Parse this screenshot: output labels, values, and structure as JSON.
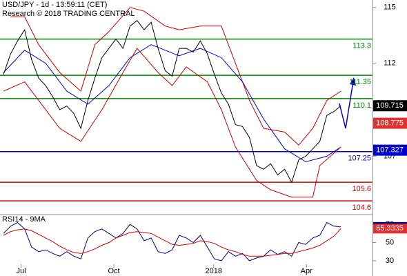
{
  "chart_data": [
    {
      "type": "line",
      "title": "USD/JPY - 1d - 13:59:11 (CET)",
      "subtitle": "Research © 2018 TRADING CENTRAL",
      "xlim": [
        -0.5,
        52.5
      ],
      "xticks": [
        {
          "value": 2.5,
          "label": "Jul"
        },
        {
          "value": 15.7,
          "label": "Oct"
        },
        {
          "value": 29.9,
          "label": "2018"
        },
        {
          "value": 43.1,
          "label": "Apr"
        }
      ],
      "ylim": [
        103.9,
        115.4
      ],
      "yticks": [
        107,
        112,
        115
      ],
      "series": [
        {
          "color": "#000000",
          "x": [
            0,
            1,
            2,
            3,
            4,
            5,
            6,
            7,
            8,
            9,
            10,
            11,
            12,
            13,
            14,
            15,
            16,
            17,
            18,
            19,
            20,
            21,
            22,
            23,
            24,
            25,
            26,
            27,
            28,
            29,
            30,
            31,
            32,
            33,
            34,
            35,
            36,
            37,
            38,
            39,
            40,
            41,
            42,
            43,
            44,
            45,
            46,
            47,
            48
          ],
          "values": [
            111.4,
            112.5,
            113.2,
            113.8,
            112.2,
            111.2,
            110.8,
            110.2,
            109.5,
            109.7,
            109.3,
            108.5,
            110.0,
            111.2,
            112.3,
            112.8,
            113.3,
            112.8,
            114.0,
            114.3,
            113.8,
            114.2,
            112.8,
            111.6,
            111.3,
            112.8,
            112.8,
            112.6,
            113.2,
            112.5,
            111.4,
            110.4,
            109.8,
            108.7,
            108.6,
            108.0,
            106.5,
            106.3,
            106.6,
            106.0,
            106.3,
            105.6,
            106.8,
            107.0,
            107.4,
            107.8,
            109.2,
            109.4,
            109.715
          ]
        },
        {
          "color": "#cc0000",
          "x": [
            1,
            3,
            5,
            8,
            11,
            13,
            15,
            18,
            20,
            23,
            25,
            28,
            31,
            33,
            35,
            37,
            40,
            42,
            44,
            46,
            48
          ],
          "values": [
            114.5,
            114.5,
            113.0,
            111.5,
            110.5,
            113.0,
            113.7,
            115.0,
            114.8,
            114.0,
            113.8,
            114.0,
            114.0,
            112.0,
            110.0,
            108.5,
            108.3,
            107.6,
            108.5,
            110.0,
            110.5
          ]
        },
        {
          "color": "#0000cc",
          "x": [
            0,
            3,
            6,
            9,
            12,
            15,
            18,
            21,
            25,
            28,
            31,
            34,
            37,
            40,
            43,
            46,
            48
          ],
          "values": [
            111.5,
            112.7,
            112.0,
            110.5,
            109.8,
            110.8,
            112.3,
            113.0,
            112.4,
            112.8,
            112.3,
            111.0,
            109.0,
            107.4,
            106.7,
            107.0,
            107.5
          ]
        },
        {
          "color": "#cc0000",
          "x": [
            0,
            3,
            5,
            8,
            11,
            14,
            17,
            19,
            22,
            24,
            26,
            29,
            31,
            33,
            36,
            38,
            41,
            44,
            45,
            48
          ],
          "values": [
            110.5,
            111.0,
            110.0,
            108.5,
            107.8,
            109.5,
            111.5,
            112.8,
            111.5,
            110.8,
            111.8,
            111.0,
            109.5,
            107.5,
            105.7,
            105.2,
            104.8,
            104.8,
            106.5,
            107.5
          ]
        }
      ],
      "levels": [
        {
          "value": 113.3,
          "color": "#008000"
        },
        {
          "value": 111.35,
          "color": "#008000"
        },
        {
          "value": 110.1,
          "color": "#008000"
        },
        {
          "value": 107.25,
          "color": "#0000cc"
        },
        {
          "value": 105.6,
          "color": "#cc0000"
        },
        {
          "value": 104.6,
          "color": "#cc0000"
        }
      ],
      "price_labels": [
        {
          "value": 109.715,
          "color": "#000000"
        },
        {
          "value": 108.775,
          "color": "#e03030"
        },
        {
          "value": 107.327,
          "color": "#0000cc"
        }
      ]
    },
    {
      "type": "line",
      "title": "RSI14 - 9MA",
      "xlim": [
        -0.5,
        52.5
      ],
      "ylim": [
        17,
        80
      ],
      "yticks": [
        30,
        50,
        70
      ],
      "series": [
        {
          "color": "#000080",
          "x": [
            0,
            1,
            2,
            3,
            4,
            5,
            6,
            7,
            8,
            9,
            10,
            11,
            12,
            13,
            14,
            15,
            16,
            17,
            18,
            19,
            20,
            21,
            22,
            23,
            24,
            25,
            26,
            27,
            28,
            29,
            30,
            31,
            32,
            33,
            34,
            35,
            36,
            37,
            38,
            39,
            40,
            41,
            42,
            43,
            44,
            45,
            46,
            47,
            48
          ],
          "values": [
            60,
            68,
            72,
            65,
            45,
            40,
            42,
            38,
            35,
            40,
            35,
            32,
            55,
            62,
            65,
            60,
            55,
            60,
            70,
            65,
            52,
            55,
            40,
            38,
            42,
            58,
            55,
            50,
            58,
            45,
            32,
            30,
            40,
            35,
            38,
            30,
            33,
            35,
            42,
            37,
            40,
            35,
            50,
            48,
            55,
            58,
            72,
            68,
            67.1937
          ],
          "label_color": "#000080"
        },
        {
          "color": "#cc0000",
          "x": [
            0,
            1,
            2,
            3,
            4,
            5,
            6,
            7,
            8,
            9,
            10,
            11,
            12,
            13,
            14,
            15,
            16,
            17,
            18,
            19,
            20,
            21,
            22,
            23,
            24,
            25,
            26,
            27,
            28,
            29,
            30,
            31,
            32,
            33,
            34,
            35,
            36,
            37,
            38,
            39,
            40,
            41,
            42,
            43,
            44,
            45,
            46,
            47,
            48
          ],
          "values": [
            58,
            62,
            64,
            65,
            63,
            59,
            55,
            51,
            46,
            42,
            39,
            38,
            40,
            43,
            47,
            50,
            55,
            58,
            61,
            62,
            61,
            60,
            56,
            52,
            48,
            47,
            48,
            49,
            52,
            51,
            49,
            45,
            42,
            40,
            37,
            35,
            35,
            35,
            36,
            37,
            38,
            38,
            40,
            42,
            44,
            47,
            52,
            57,
            65.3335
          ],
          "label_color": "#e03030"
        }
      ]
    }
  ]
}
